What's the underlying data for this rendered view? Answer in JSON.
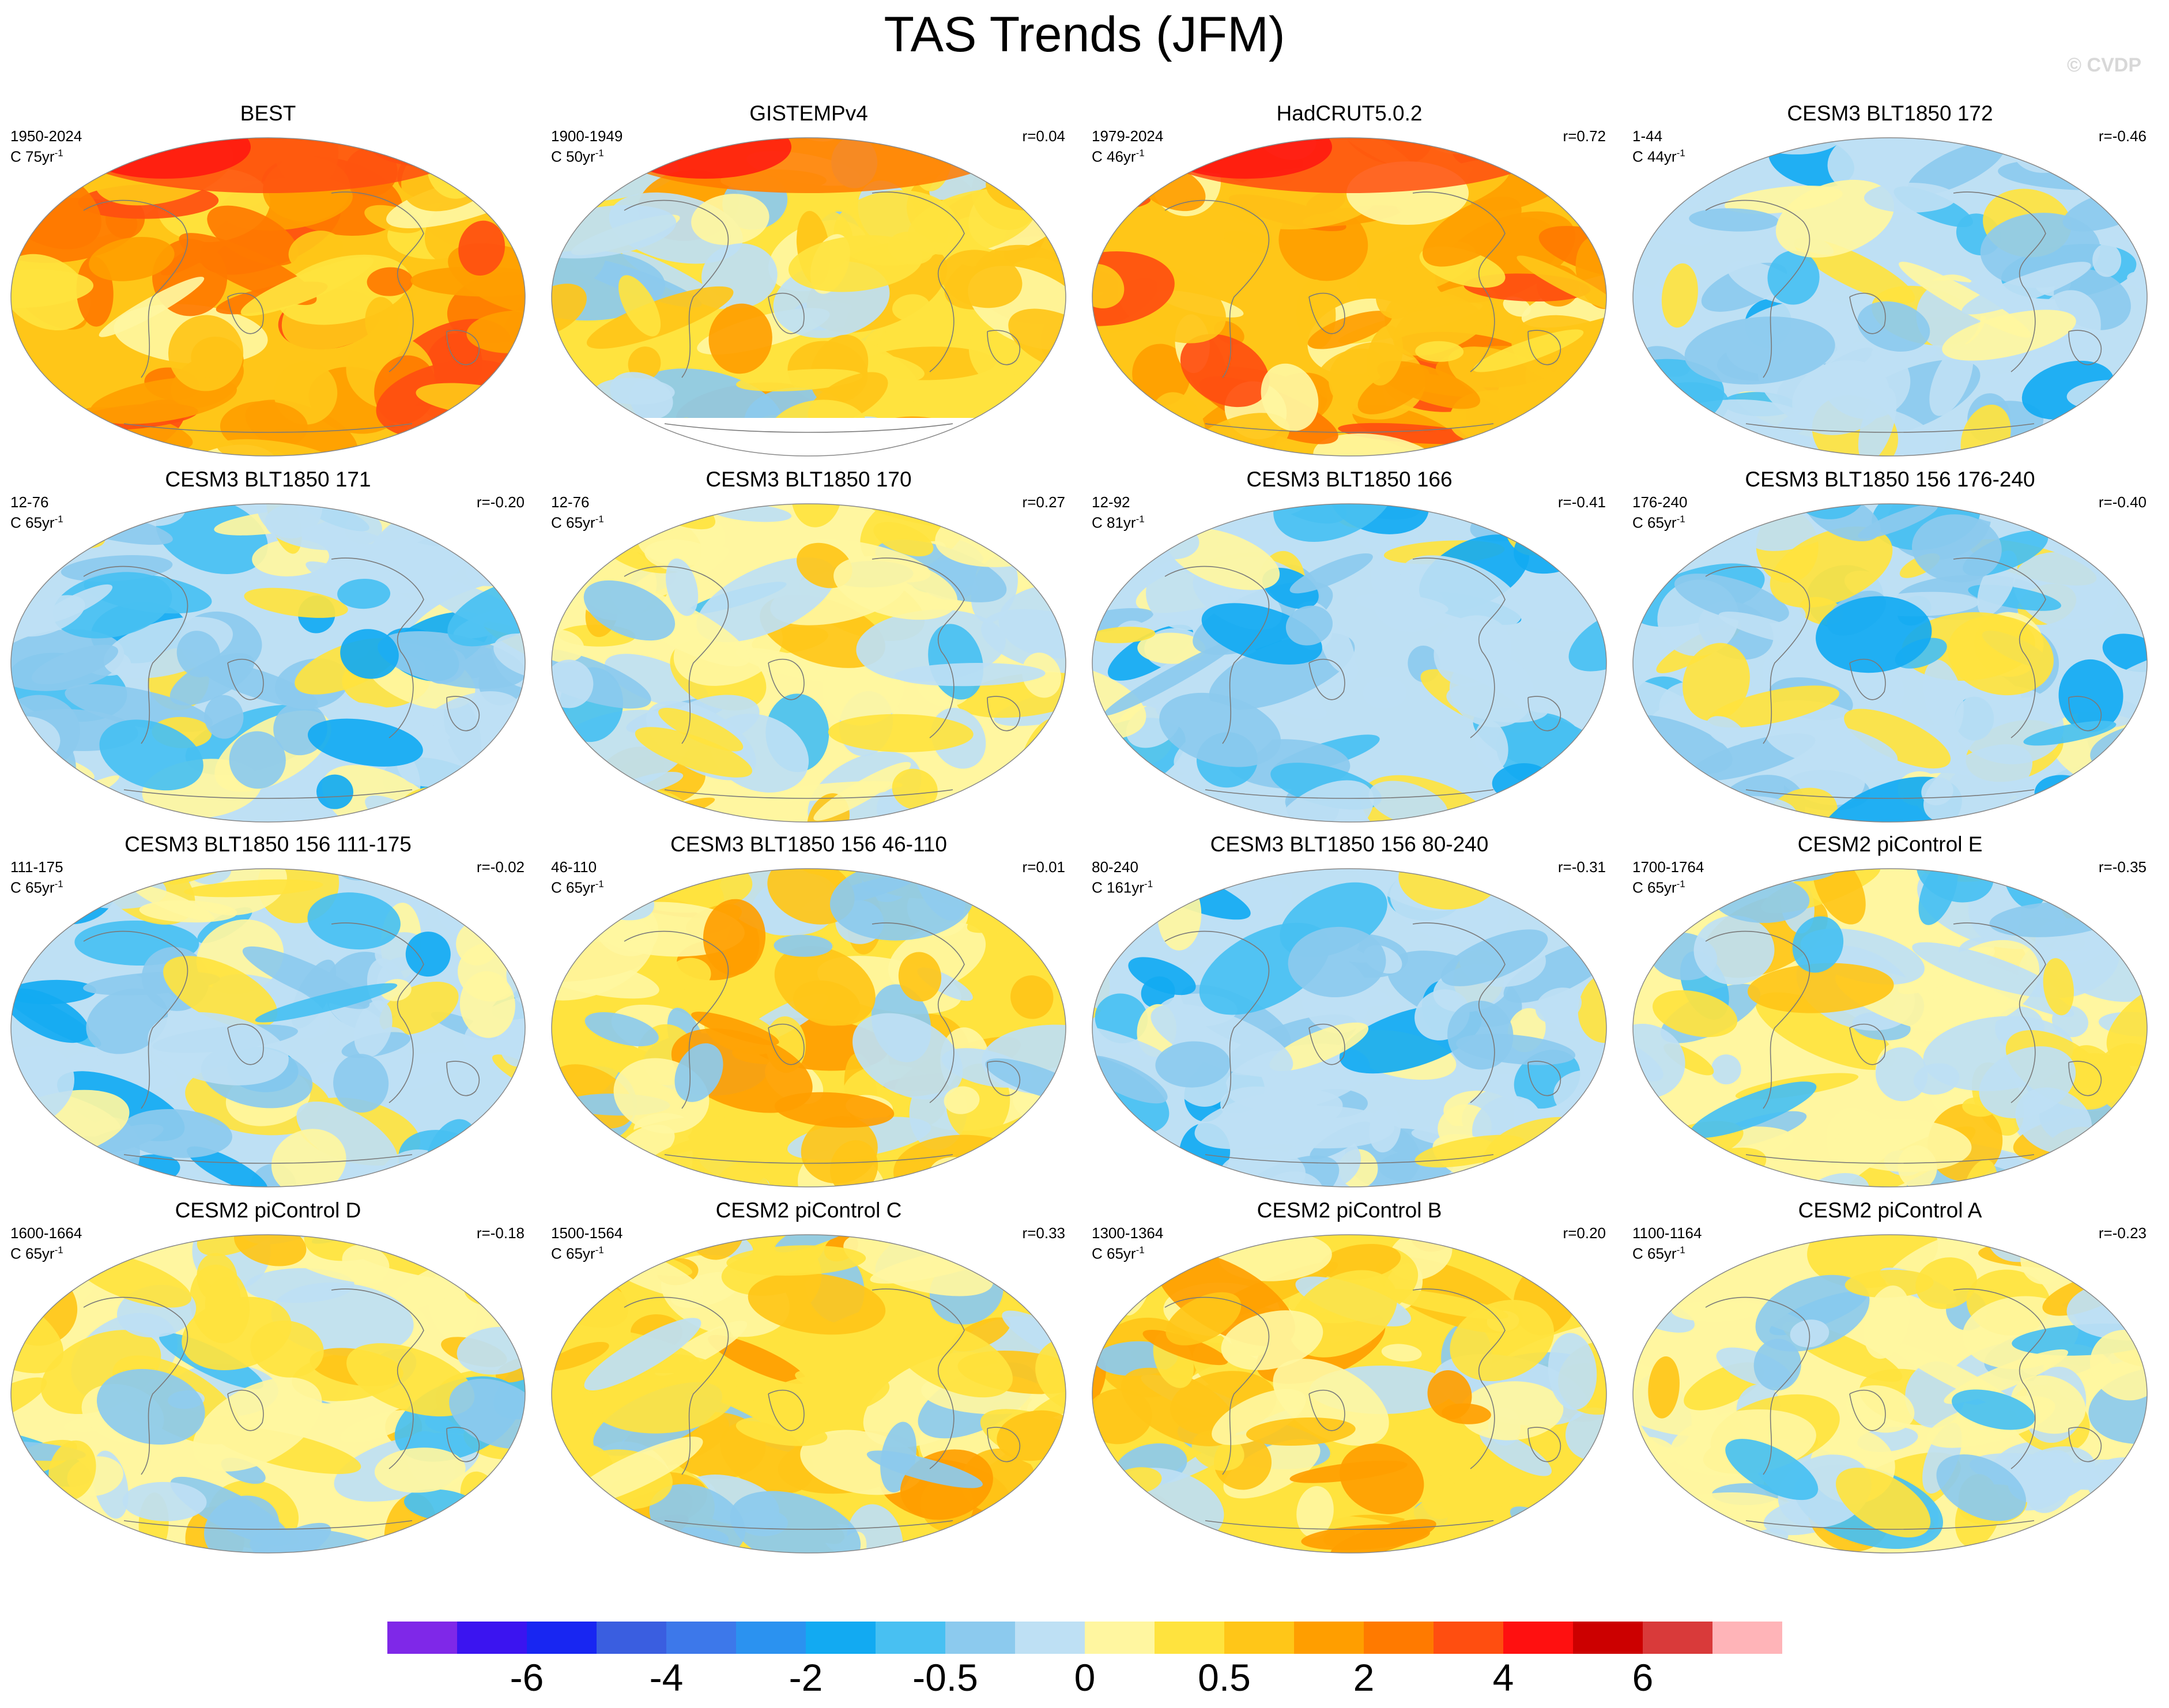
{
  "title": "TAS Trends (JFM)",
  "copyright": "© CVDP",
  "panels": [
    {
      "title": "BEST",
      "period": "1950-2024",
      "unit": "C 75yr",
      "r": "",
      "pattern": "warm",
      "seed": 1,
      "cap": true
    },
    {
      "title": "GISTEMPv4",
      "period": "1900-1949",
      "unit": "C 50yr",
      "r": "r=0.04",
      "pattern": "mixwarm",
      "seed": 2,
      "cap": true,
      "missing_south": true
    },
    {
      "title": "HadCRUT5.0.2",
      "period": "1979-2024",
      "unit": "C 46yr",
      "r": "r=0.72",
      "pattern": "warm",
      "seed": 3,
      "cap": true
    },
    {
      "title": "CESM3 BLT1850 172",
      "period": "1-44",
      "unit": "C 44yr",
      "r": "r=-0.46",
      "pattern": "cool",
      "seed": 4
    },
    {
      "title": "CESM3 BLT1850 171",
      "period": "12-76",
      "unit": "C 65yr",
      "r": "r=-0.20",
      "pattern": "cool",
      "seed": 5
    },
    {
      "title": "CESM3 BLT1850 170",
      "period": "12-76",
      "unit": "C 65yr",
      "r": "r=0.27",
      "pattern": "mixed",
      "seed": 6
    },
    {
      "title": "CESM3 BLT1850 166",
      "period": "12-92",
      "unit": "C 81yr",
      "r": "r=-0.41",
      "pattern": "cool",
      "seed": 7
    },
    {
      "title": "CESM3 BLT1850 156 176-240",
      "period": "176-240",
      "unit": "C 65yr",
      "r": "r=-0.40",
      "pattern": "cool",
      "seed": 8
    },
    {
      "title": "CESM3 BLT1850 156 111-175",
      "period": "111-175",
      "unit": "C 65yr",
      "r": "r=-0.02",
      "pattern": "cool",
      "seed": 9
    },
    {
      "title": "CESM3 BLT1850 156 46-110",
      "period": "46-110",
      "unit": "C 65yr",
      "r": "r=0.01",
      "pattern": "mixwarm",
      "seed": 10
    },
    {
      "title": "CESM3 BLT1850 156 80-240",
      "period": "80-240",
      "unit": "C 161yr",
      "r": "r=-0.31",
      "pattern": "cool",
      "seed": 11
    },
    {
      "title": "CESM2 piControl E",
      "period": "1700-1764",
      "unit": "C 65yr",
      "r": "r=-0.35",
      "pattern": "mixed",
      "seed": 12
    },
    {
      "title": "CESM2 piControl D",
      "period": "1600-1664",
      "unit": "C 65yr",
      "r": "r=-0.18",
      "pattern": "mixed",
      "seed": 13
    },
    {
      "title": "CESM2 piControl C",
      "period": "1500-1564",
      "unit": "C 65yr",
      "r": "r=0.33",
      "pattern": "mixwarm",
      "seed": 14
    },
    {
      "title": "CESM2 piControl B",
      "period": "1300-1364",
      "unit": "C 65yr",
      "r": "r=0.20",
      "pattern": "mixwarm",
      "seed": 15
    },
    {
      "title": "CESM2 piControl A",
      "period": "1100-1164",
      "unit": "C 65yr",
      "r": "r=-0.23",
      "pattern": "mixed",
      "seed": 16
    }
  ],
  "colorbar": {
    "colors": [
      "#7f28e8",
      "#3b14f0",
      "#1826f2",
      "#3a5ee0",
      "#3d78ea",
      "#2b92f0",
      "#12aaf2",
      "#48c0f2",
      "#8ccaee",
      "#bee0f4",
      "#fff6a0",
      "#ffe33e",
      "#ffc618",
      "#ff9e00",
      "#ff7a00",
      "#ff4e10",
      "#ff1010",
      "#cc0000",
      "#d93a3a",
      "#ffb4b8"
    ],
    "labels": [
      "-6",
      "-4",
      "-2",
      "-0.5",
      "0",
      "0.5",
      "2",
      "4",
      "6"
    ]
  }
}
